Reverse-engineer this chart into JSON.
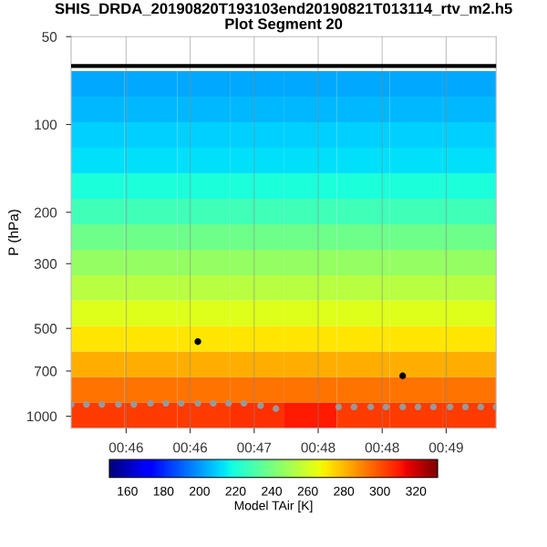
{
  "chart_data": [
    {
      "type": "heatmap",
      "clabel": "Model TAir [K]",
      "categories": [
        null,
        null,
        null,
        null,
        null,
        null,
        null,
        null
      ],
      "y_categories": [
        null,
        null,
        null,
        null,
        null,
        null,
        null,
        null,
        null,
        null,
        null,
        null,
        null,
        null
      ],
      "cells": [
        [
          203,
          203,
          203,
          203,
          203,
          203,
          203,
          203
        ],
        [
          206,
          206,
          206,
          206,
          206,
          206,
          206,
          206
        ],
        [
          210,
          210,
          210,
          210,
          210,
          210,
          210,
          210
        ],
        [
          213,
          213,
          213,
          213,
          213,
          213,
          213,
          213
        ],
        [
          220,
          220,
          220,
          220,
          220,
          220,
          220,
          220
        ],
        [
          228,
          228,
          228,
          228,
          228,
          228,
          228,
          228
        ],
        [
          238,
          238,
          238,
          238,
          238,
          238,
          238,
          238
        ],
        [
          246,
          246,
          246,
          246,
          246,
          246,
          246,
          246
        ],
        [
          254,
          254,
          254,
          254,
          254,
          254,
          254,
          254
        ],
        [
          263,
          263,
          263,
          263,
          263,
          263,
          263,
          263
        ],
        [
          271,
          271,
          271,
          271,
          271,
          271,
          271,
          271
        ],
        [
          282,
          282,
          282,
          282,
          282,
          282,
          282,
          282
        ],
        [
          293,
          293,
          293,
          293,
          293,
          293,
          293,
          293
        ],
        [
          304,
          304,
          304,
          306,
          310,
          304,
          304,
          304
        ]
      ],
      "clim": [
        150,
        332
      ],
      "cticks": [
        160,
        180,
        200,
        220,
        240,
        260,
        280,
        300,
        320
      ]
    },
    {
      "type": "scatter",
      "title": "SHIS_DRDA_20190820T193103end20190821T013114_rtv_m2.h5",
      "subtitle": "Plot Segment 20",
      "ylabel": "P (hPa)",
      "series": [
        {
          "type": "line",
          "color": "#000000",
          "x": [
            45.57,
            48.89
          ],
          "values": [
            63,
            63
          ]
        },
        {
          "type": "scatter",
          "color": "#999999",
          "marker": "circle",
          "x": [
            45.57,
            45.69,
            45.81,
            45.94,
            46.06,
            46.19,
            46.31,
            46.43,
            46.56,
            46.68,
            46.8,
            46.92,
            47.05,
            47.17,
            47.66,
            47.78,
            47.91,
            48.03,
            48.16,
            48.28,
            48.4,
            48.53,
            48.65,
            48.77,
            48.89
          ],
          "values": [
            911,
            911,
            911,
            911,
            911,
            903,
            903,
            903,
            903,
            903,
            903,
            903,
            920,
            942,
            929,
            929,
            929,
            929,
            929,
            929,
            929,
            929,
            929,
            929,
            929
          ]
        },
        {
          "type": "scatter",
          "color": "#000000",
          "marker": "circle",
          "x": [
            46.56,
            48.16
          ],
          "values": [
            555,
            727
          ]
        }
      ],
      "xlim": [
        45.57,
        48.89
      ],
      "xticks": [
        {
          "value": 46.0,
          "label": "00:46"
        },
        {
          "value": 46.5,
          "label": "00:46"
        },
        {
          "value": 47.0,
          "label": "00:47"
        },
        {
          "value": 47.5,
          "label": "00:48"
        },
        {
          "value": 48.0,
          "label": "00:48"
        },
        {
          "value": 48.5,
          "label": "00:49"
        }
      ],
      "ylim": [
        1100,
        50
      ],
      "yticks": [
        50,
        100,
        200,
        300,
        500,
        700,
        1000
      ],
      "log": "y",
      "grid": "x"
    }
  ]
}
